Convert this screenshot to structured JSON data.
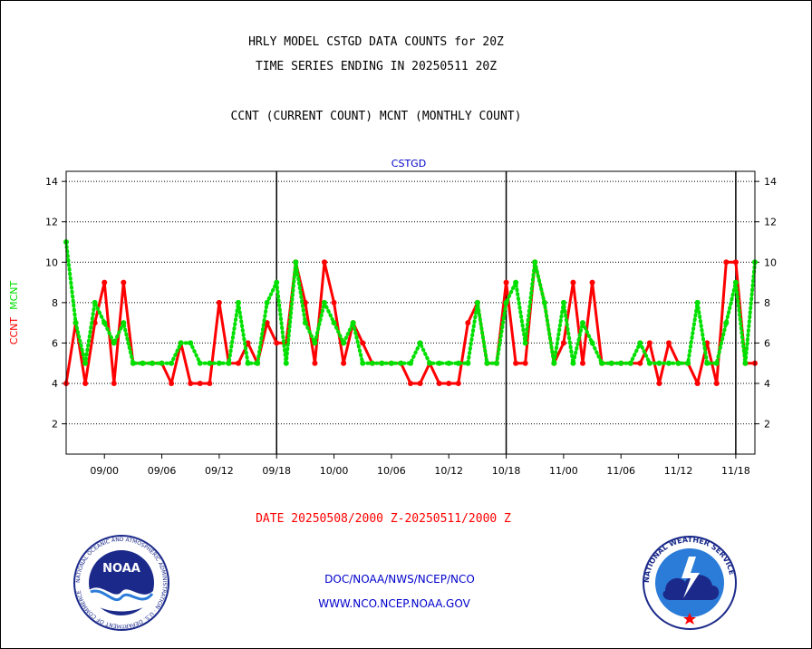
{
  "header": {
    "line1": "HRLY MODEL CSTGD DATA COUNTS for 20Z",
    "line2": "TIME SERIES ENDING IN 20250511 20Z",
    "line3": "CCNT (CURRENT COUNT) MCNT (MONTHLY COUNT)"
  },
  "footer": {
    "date_range": "DATE 20250508/2000 Z-20250511/2000 Z",
    "org_path": "DOC/NOAA/NWS/NCEP/NCO",
    "website": "WWW.NCO.NCEP.NOAA.GOV"
  },
  "logos": {
    "noaa_text": "NOAA",
    "noaa_ring": "NATIONAL OCEANIC AND ATMOSPHERIC ADMINISTRATION · U.S. DEPARTMENT OF COMMERCE",
    "nws_ring": "NATIONAL WEATHER SERVICE"
  },
  "colors": {
    "ccnt": "#ff0000",
    "mcnt": "#00e000",
    "title_blue": "#0000cc"
  },
  "chart_data": {
    "type": "line",
    "title": "CSTGD",
    "ylabel_parts": [
      {
        "text": "CCNT",
        "color": "#ff0000"
      },
      {
        "text": "MCNT",
        "color": "#00e000"
      }
    ],
    "ylim": [
      0.5,
      14.5
    ],
    "yticks": [
      2,
      4,
      6,
      8,
      10,
      12,
      14
    ],
    "xticks": [
      "09/00",
      "09/06",
      "09/12",
      "09/18",
      "10/00",
      "10/06",
      "10/12",
      "10/18",
      "11/00",
      "11/06",
      "11/12",
      "11/18"
    ],
    "xtick_hours": [
      4,
      10,
      16,
      22,
      28,
      34,
      40,
      46,
      52,
      58,
      64,
      70
    ],
    "day_dividers_hours": [
      22,
      46,
      70
    ],
    "x_hours": [
      0,
      1,
      2,
      3,
      4,
      5,
      6,
      7,
      8,
      9,
      10,
      11,
      12,
      13,
      14,
      15,
      16,
      17,
      18,
      19,
      20,
      21,
      22,
      23,
      24,
      25,
      26,
      27,
      28,
      29,
      30,
      31,
      32,
      33,
      34,
      35,
      36,
      37,
      38,
      39,
      40,
      41,
      42,
      43,
      44,
      45,
      46,
      47,
      48,
      49,
      50,
      51,
      52,
      53,
      54,
      55,
      56,
      57,
      58,
      59,
      60,
      61,
      62,
      63,
      64,
      65,
      66,
      67,
      68,
      69,
      70,
      71,
      72
    ],
    "grid": true,
    "series": [
      {
        "name": "CCNT",
        "color": "#ff0000",
        "values": [
          4,
          7,
          4,
          7,
          9,
          4,
          9,
          5,
          5,
          5,
          5,
          4,
          6,
          4,
          4,
          4,
          8,
          5,
          5,
          6,
          5,
          7,
          6,
          6,
          10,
          8,
          5,
          10,
          8,
          5,
          7,
          6,
          5,
          5,
          5,
          5,
          4,
          4,
          5,
          4,
          4,
          4,
          7,
          8,
          5,
          5,
          9,
          5,
          5,
          10,
          8,
          5,
          6,
          9,
          5,
          9,
          5,
          5,
          5,
          5,
          5,
          6,
          4,
          6,
          5,
          5,
          4,
          6,
          4,
          10,
          10,
          5,
          5
        ]
      },
      {
        "name": "MCNT",
        "color": "#00e000",
        "values": [
          11,
          7,
          5,
          8,
          7,
          6,
          7,
          5,
          5,
          5,
          5,
          5,
          6,
          6,
          5,
          5,
          5,
          5,
          8,
          5,
          5,
          8,
          9,
          5,
          10,
          7,
          6,
          8,
          7,
          6,
          7,
          5,
          5,
          5,
          5,
          5,
          5,
          6,
          5,
          5,
          5,
          5,
          5,
          8,
          5,
          5,
          8,
          9,
          6,
          10,
          8,
          5,
          8,
          5,
          7,
          6,
          5,
          5,
          5,
          5,
          6,
          5,
          5,
          5,
          5,
          5,
          8,
          5,
          5,
          7,
          9,
          5,
          10
        ]
      }
    ]
  }
}
